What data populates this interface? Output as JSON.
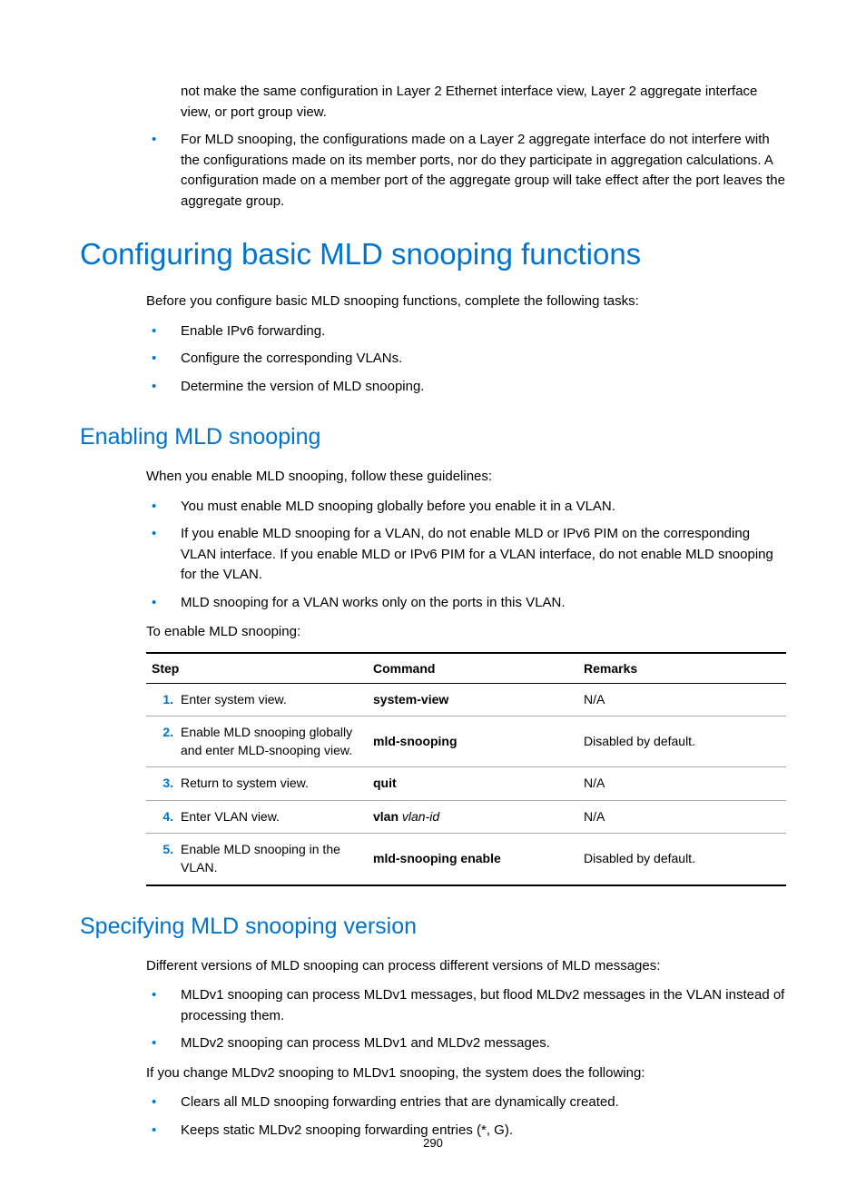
{
  "colors": {
    "accent": "#0073cf",
    "text": "#000000",
    "background": "#ffffff",
    "table_row_border": "#aaaaaa"
  },
  "continuation": {
    "line1": "not make the same configuration in Layer 2 Ethernet interface view, Layer 2 aggregate interface view, or port group view.",
    "bullet1": "For MLD snooping, the configurations made on a Layer 2 aggregate interface do not interfere with the configurations made on its member ports, nor do they participate in aggregation calculations. A configuration made on a member port of the aggregate group will take effect after the port leaves the aggregate group."
  },
  "h1": "Configuring basic MLD snooping functions",
  "intro1": "Before you configure basic MLD snooping functions, complete the following tasks:",
  "intro1_bullets": [
    "Enable IPv6 forwarding.",
    "Configure the corresponding VLANs.",
    "Determine the version of MLD snooping."
  ],
  "h2a": "Enabling MLD snooping",
  "h2a_intro": "When you enable MLD snooping, follow these guidelines:",
  "h2a_bullets": [
    "You must enable MLD snooping globally before you enable it in a VLAN.",
    "If you enable MLD snooping for a VLAN, do not enable MLD or IPv6 PIM on the corresponding VLAN interface. If you enable MLD or IPv6 PIM for a VLAN interface, do not enable MLD snooping for the VLAN.",
    "MLD snooping for a VLAN works only on the ports in this VLAN."
  ],
  "h2a_lead": "To enable MLD snooping:",
  "table": {
    "headers": {
      "step": "Step",
      "command": "Command",
      "remarks": "Remarks"
    },
    "rows": [
      {
        "num": "1.",
        "step": "Enter system view.",
        "cmd_bold": "system-view",
        "cmd_ital": "",
        "remarks": "N/A"
      },
      {
        "num": "2.",
        "step": "Enable MLD snooping globally and enter MLD-snooping view.",
        "cmd_bold": "mld-snooping",
        "cmd_ital": "",
        "remarks": "Disabled by default."
      },
      {
        "num": "3.",
        "step": "Return to system view.",
        "cmd_bold": "quit",
        "cmd_ital": "",
        "remarks": "N/A"
      },
      {
        "num": "4.",
        "step": "Enter VLAN view.",
        "cmd_bold": "vlan",
        "cmd_ital": " vlan-id",
        "remarks": "N/A"
      },
      {
        "num": "5.",
        "step": "Enable MLD snooping in the VLAN.",
        "cmd_bold": "mld-snooping enable",
        "cmd_ital": "",
        "remarks": "Disabled by default."
      }
    ]
  },
  "h2b": "Specifying MLD snooping version",
  "h2b_intro": "Different versions of MLD snooping can process different versions of MLD messages:",
  "h2b_bullets": [
    "MLDv1 snooping can process MLDv1 messages, but flood MLDv2 messages in the VLAN instead of processing them.",
    "MLDv2 snooping can process MLDv1 and MLDv2 messages."
  ],
  "h2b_lead": "If you change MLDv2 snooping to MLDv1 snooping, the system does the following:",
  "h2b_bullets2": [
    "Clears all MLD snooping forwarding entries that are dynamically created.",
    "Keeps static MLDv2 snooping forwarding entries (*, G)."
  ],
  "page_number": "290"
}
